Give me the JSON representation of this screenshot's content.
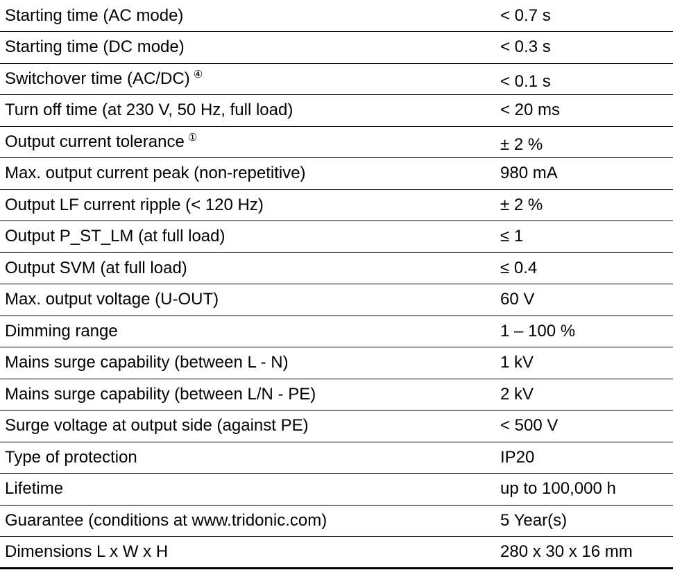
{
  "rows": [
    {
      "label": "Starting time (AC mode)",
      "note": "",
      "value": "< 0.7 s"
    },
    {
      "label": "Starting time (DC mode)",
      "note": "",
      "value": "< 0.3 s"
    },
    {
      "label": "Switchover time (AC/DC)",
      "note": "④",
      "value": "< 0.1 s"
    },
    {
      "label": "Turn off time (at 230 V, 50 Hz, full load)",
      "note": "",
      "value": "< 20 ms"
    },
    {
      "label": "Output current tolerance",
      "note": "①",
      "value": "± 2 %"
    },
    {
      "label": "Max. output current peak (non-repetitive)",
      "note": "",
      "value": "980 mA"
    },
    {
      "label": "Output LF current ripple (< 120 Hz)",
      "note": "",
      "value": "± 2 %"
    },
    {
      "label": "Output P_ST_LM (at full load)",
      "note": "",
      "value": "≤ 1"
    },
    {
      "label": "Output SVM (at full load)",
      "note": "",
      "value": "≤ 0.4"
    },
    {
      "label": "Max. output voltage (U-OUT)",
      "note": "",
      "value": "60 V"
    },
    {
      "label": "Dimming range",
      "note": "",
      "value": "1 – 100 %"
    },
    {
      "label": "Mains surge capability (between L - N)",
      "note": "",
      "value": "1 kV"
    },
    {
      "label": "Mains surge capability (between L/N - PE)",
      "note": "",
      "value": "2 kV"
    },
    {
      "label": "Surge voltage at output side (against PE)",
      "note": "",
      "value": "< 500 V"
    },
    {
      "label": "Type of protection",
      "note": "",
      "value": "IP20"
    },
    {
      "label": "Lifetime",
      "note": "",
      "value": "up to 100,000 h"
    },
    {
      "label": "Guarantee (conditions at www.tridonic.com)",
      "note": "",
      "value": "5 Year(s)"
    },
    {
      "label": "Dimensions L x W x H",
      "note": "",
      "value": "280 x 30 x 16 mm"
    }
  ]
}
